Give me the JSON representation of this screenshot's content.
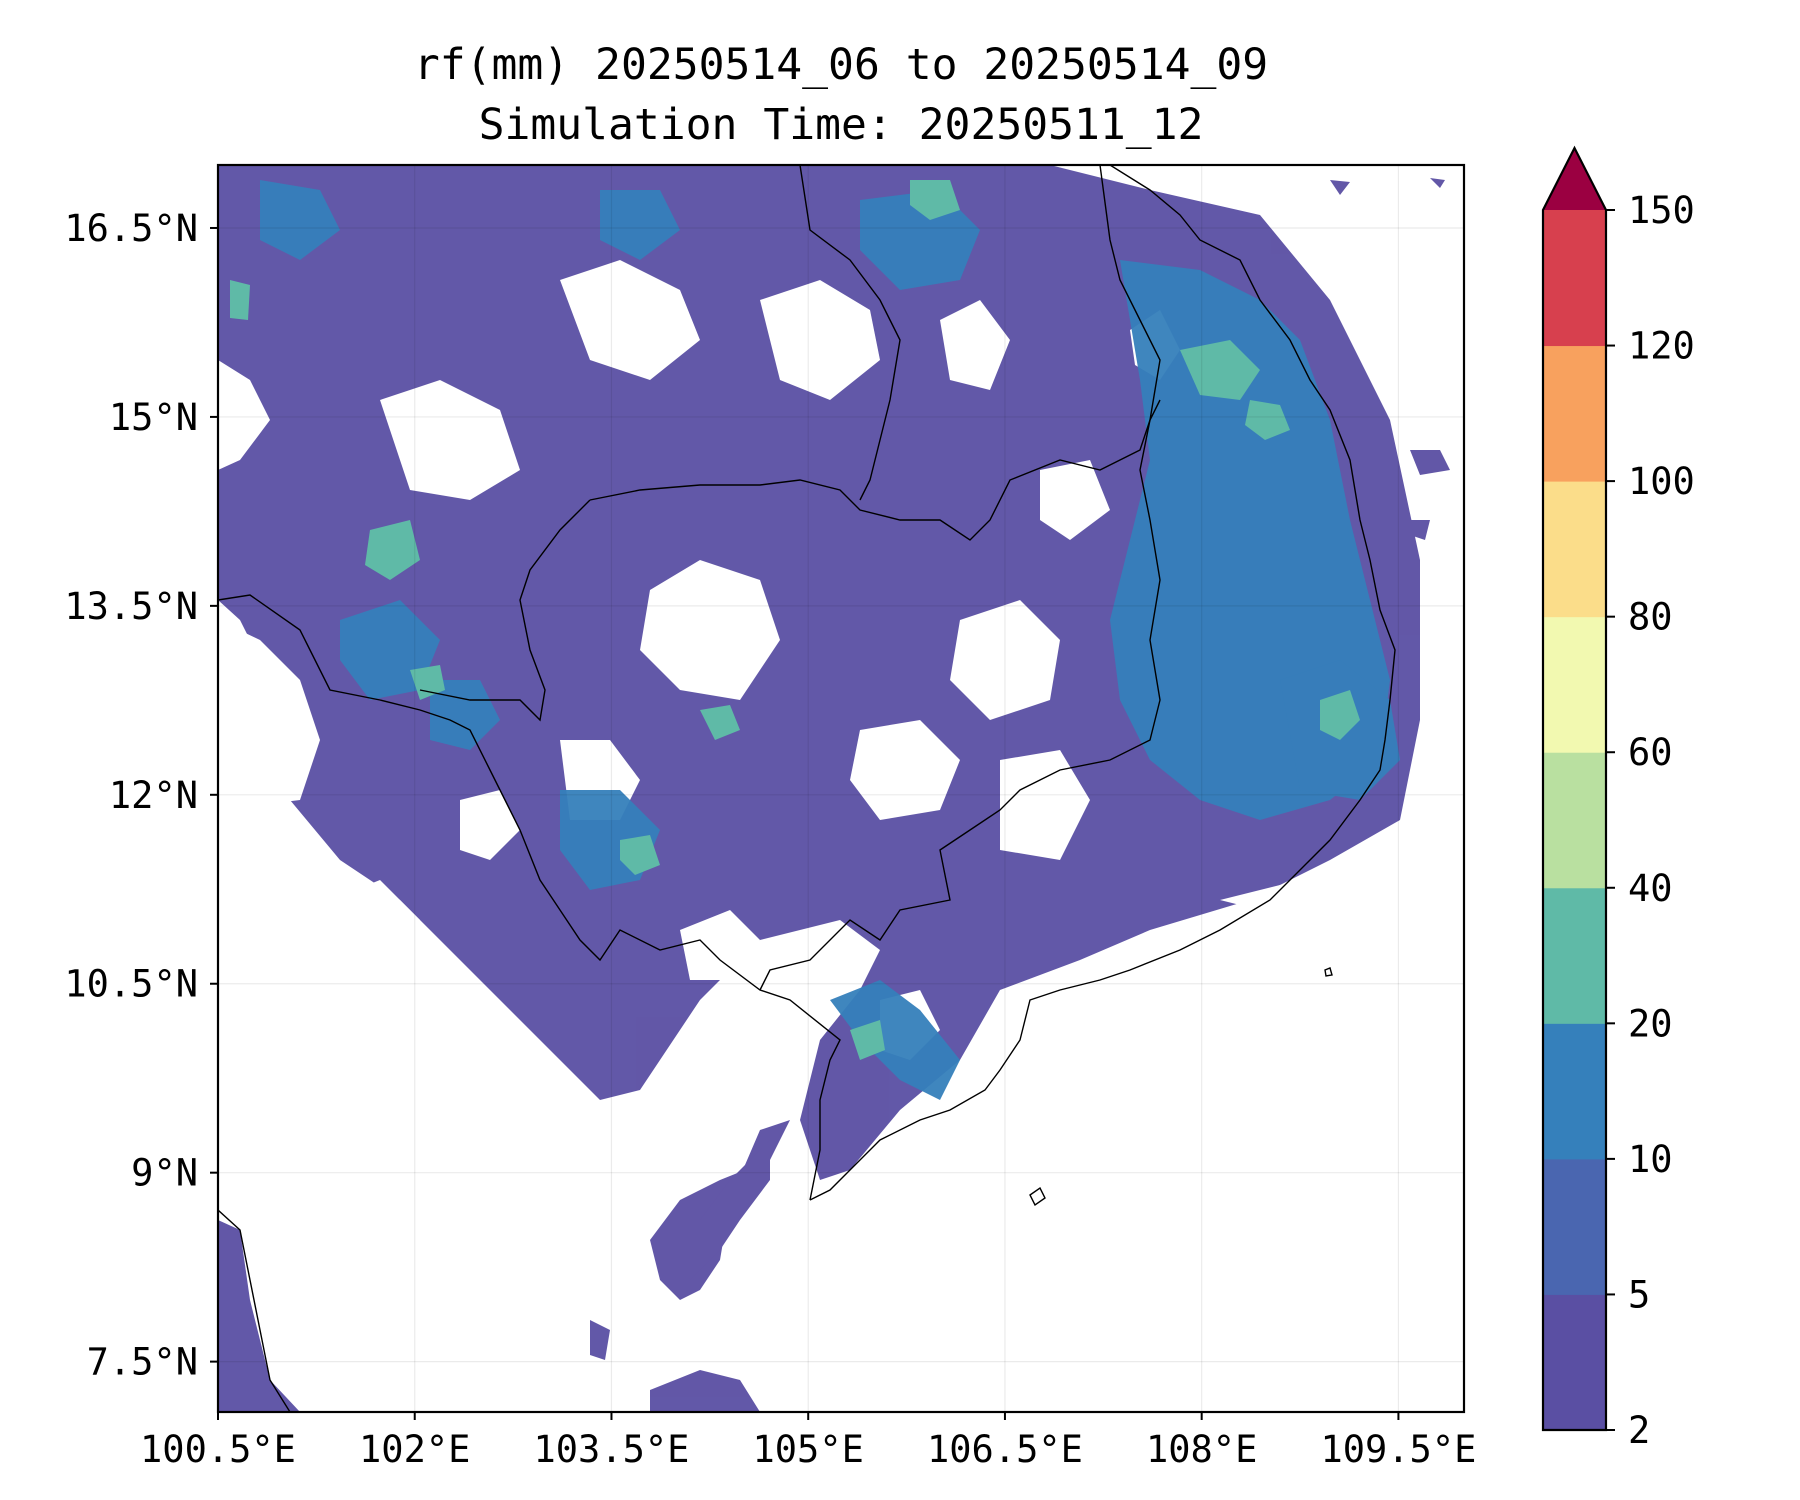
{
  "title": {
    "line1": "rf(mm) 20250514_06 to 20250514_09",
    "line2": "Simulation Time: 20250511_12"
  },
  "map": {
    "x_ticks": [
      "100.5°E",
      "102°E",
      "103.5°E",
      "105°E",
      "106.5°E",
      "108°E",
      "109.5°E"
    ],
    "x_values": [
      100.5,
      102,
      103.5,
      105,
      106.5,
      108,
      109.5
    ],
    "y_ticks": [
      "16.5°N",
      "15°N",
      "13.5°N",
      "12°N",
      "10.5°N",
      "9°N",
      "7.5°N"
    ],
    "y_values": [
      16.5,
      15,
      13.5,
      12,
      10.5,
      9,
      7.5
    ],
    "lon_range": [
      100.5,
      110.0
    ],
    "lat_range": [
      7.1,
      17.0
    ],
    "gridlines": true
  },
  "colorbar": {
    "levels": [
      "2",
      "5",
      "10",
      "20",
      "40",
      "60",
      "80",
      "100",
      "120",
      "150"
    ],
    "colors": [
      "#5a4fa3",
      "#4a66b0",
      "#3580bb",
      "#5fbaa7",
      "#b9e0a0",
      "#f2f9b0",
      "#fbdd8a",
      "#f8a15e",
      "#d7404e"
    ],
    "extend_color": "#9b0041",
    "extend": "max"
  },
  "rain_colors": {
    "light": "#5a4fa3",
    "mid": "#4a66b0",
    "heavy": "#3580bb",
    "peak": "#5fbaa7"
  }
}
